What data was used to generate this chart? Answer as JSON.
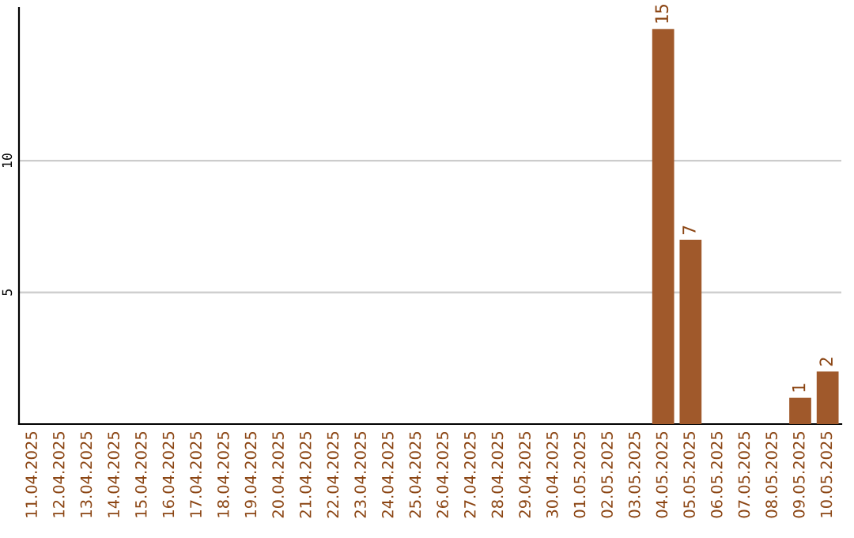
{
  "chart_data": {
    "type": "bar",
    "categories": [
      "11.04.2025",
      "12.04.2025",
      "13.04.2025",
      "14.04.2025",
      "15.04.2025",
      "16.04.2025",
      "17.04.2025",
      "18.04.2025",
      "19.04.2025",
      "20.04.2025",
      "21.04.2025",
      "22.04.2025",
      "23.04.2025",
      "24.04.2025",
      "25.04.2025",
      "26.04.2025",
      "27.04.2025",
      "28.04.2025",
      "29.04.2025",
      "30.04.2025",
      "01.05.2025",
      "02.05.2025",
      "03.05.2025",
      "04.05.2025",
      "05.05.2025",
      "06.05.2025",
      "07.05.2025",
      "08.05.2025",
      "09.05.2025",
      "10.05.2025"
    ],
    "series": [
      {
        "color": "#a0592b",
        "values": [
          0,
          0,
          0,
          0,
          0,
          0,
          0,
          0,
          0,
          0,
          0,
          0,
          0,
          0,
          0,
          0,
          0,
          0,
          0,
          0,
          0,
          0,
          0,
          15,
          7,
          0,
          0,
          0,
          1,
          2
        ],
        "value_labels": [
          null,
          null,
          null,
          null,
          null,
          null,
          null,
          null,
          null,
          null,
          null,
          null,
          null,
          null,
          null,
          null,
          null,
          null,
          null,
          null,
          null,
          null,
          null,
          "15",
          "7",
          null,
          null,
          null,
          "1",
          "2"
        ]
      }
    ],
    "ylim": [
      0,
      15.8
    ],
    "yticks": [
      5,
      10
    ],
    "grid": "y"
  }
}
